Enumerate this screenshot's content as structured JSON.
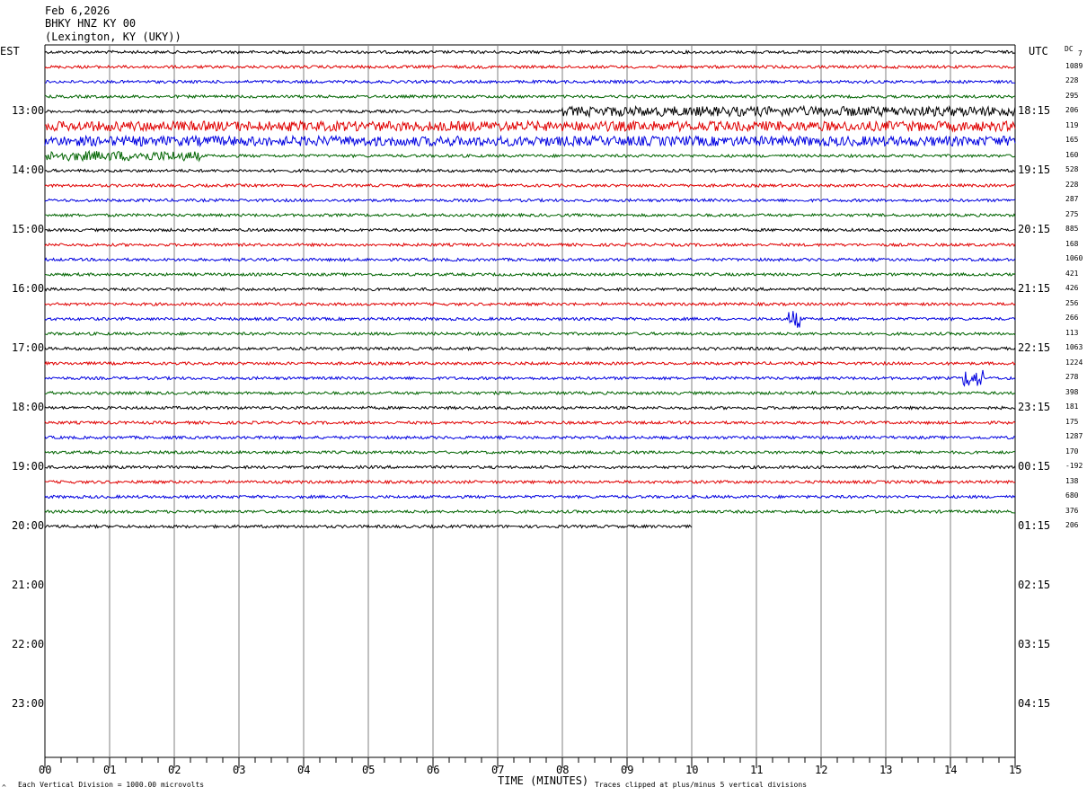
{
  "header": {
    "date": "Feb 6,2026",
    "station": "BHKY HNZ KY 00",
    "location": "(Lexington, KY (UKY))"
  },
  "left_zone": "EST",
  "right_zone": "UTC",
  "dc_label": "DC",
  "dc_top_value": "7",
  "footer": {
    "scale_note": "Each Vertical Division = 1000.00 microvolts",
    "clip_note": "Traces clipped at plus/minus 5 vertical divisions",
    "corner_mark": "^"
  },
  "chart_data": {
    "type": "line",
    "title": "",
    "xlabel": "TIME (MINUTES)",
    "x_ticks": [
      "00",
      "01",
      "02",
      "03",
      "04",
      "05",
      "06",
      "07",
      "08",
      "09",
      "10",
      "11",
      "12",
      "13",
      "14",
      "15"
    ],
    "xlim": [
      0,
      15
    ],
    "grid": true,
    "est_hours": [
      "13:00",
      "14:00",
      "15:00",
      "16:00",
      "17:00",
      "18:00",
      "19:00",
      "20:00",
      "21:00",
      "22:00",
      "23:00"
    ],
    "utc_hours": [
      "18:15",
      "19:15",
      "20:15",
      "21:15",
      "22:15",
      "23:15",
      "00:15",
      "01:15",
      "02:15",
      "03:15",
      "04:15"
    ],
    "trace_colors": [
      "#000000",
      "#e00000",
      "#0000e0",
      "#006400"
    ],
    "dc_offsets": [
      "1089",
      "228",
      "295",
      "206",
      "119",
      "165",
      "160",
      "528",
      "228",
      "287",
      "275",
      "885",
      "168",
      "1060",
      "421",
      "426",
      "256",
      "266",
      "113",
      "1063",
      "1224",
      "278",
      "398",
      "181",
      "175",
      "1287",
      "170",
      "-192",
      "138",
      "680",
      "376",
      "206"
    ],
    "traces_plotted": 33,
    "last_trace_end_minute": 10,
    "events": [
      {
        "trace": 4,
        "start_minute": 8,
        "end_minute": 15,
        "amplitude": "elevated"
      },
      {
        "trace": 5,
        "start_minute": 0,
        "end_minute": 15,
        "amplitude": "elevated"
      },
      {
        "trace": 6,
        "start_minute": 0,
        "end_minute": 15,
        "amplitude": "elevated"
      },
      {
        "trace": 7,
        "start_minute": 0,
        "end_minute": 2.4,
        "amplitude": "elevated"
      },
      {
        "trace": 18,
        "start_minute": 11.5,
        "end_minute": 11.7,
        "amplitude": "spike"
      },
      {
        "trace": 22,
        "start_minute": 14.2,
        "end_minute": 14.5,
        "amplitude": "spike"
      }
    ]
  }
}
